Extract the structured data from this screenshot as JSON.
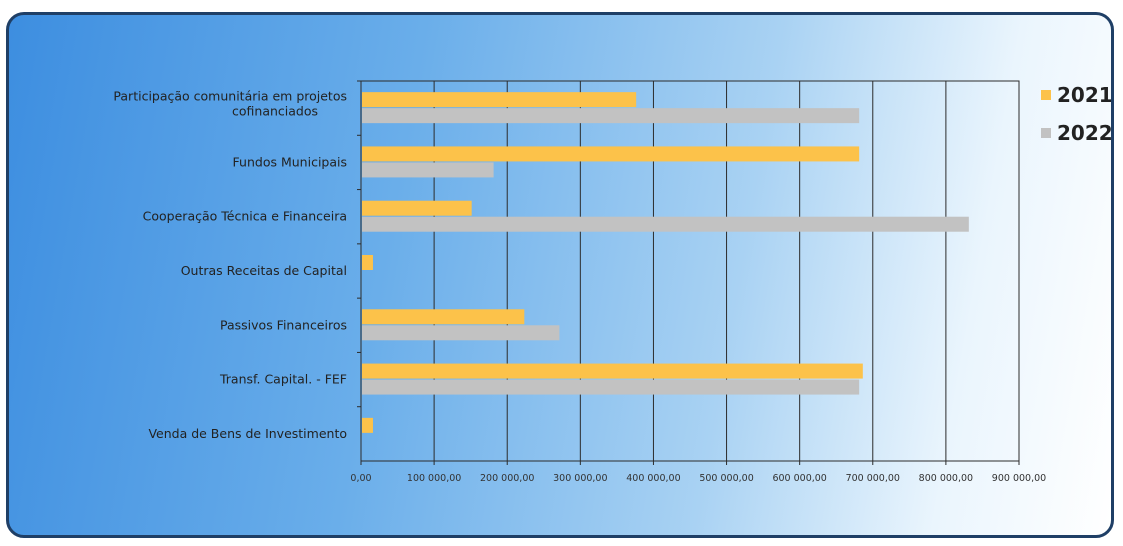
{
  "chart_data": {
    "type": "bar",
    "orientation": "horizontal",
    "categories": [
      "Participação comunitária em projetos cofinanciados",
      "Fundos Municipais",
      "Cooperação Técnica e Financeira",
      "Outras Receitas de Capital",
      "Passivos Financeiros",
      "Transf. Capital. - FEF",
      "Venda de Bens de Investimento"
    ],
    "category_lines": [
      [
        "Participação comunitária em projetos",
        "cofinanciados"
      ],
      [
        "Fundos Municipais"
      ],
      [
        "Cooperação Técnica e Financeira"
      ],
      [
        "Outras Receitas de Capital"
      ],
      [
        "Passivos Financeiros"
      ],
      [
        "Transf. Capital. - FEF"
      ],
      [
        "Venda de Bens de Investimento"
      ]
    ],
    "series": [
      {
        "name": "2021",
        "color": "#fcc24a",
        "values": [
          375000,
          680000,
          150000,
          15000,
          222000,
          685000,
          15000
        ]
      },
      {
        "name": "2022",
        "color": "#c2c2c2",
        "values": [
          680000,
          180000,
          830000,
          0,
          270000,
          680000,
          0
        ]
      }
    ],
    "xlim": [
      0,
      900000
    ],
    "x_ticks": [
      0,
      100000,
      200000,
      300000,
      400000,
      500000,
      600000,
      700000,
      800000,
      900000
    ],
    "x_tick_labels": [
      "0,00",
      "100 000,00",
      "200 000,00",
      "300 000,00",
      "400 000,00",
      "500 000,00",
      "600 000,00",
      "700 000,00",
      "800 000,00",
      "900 000,00"
    ],
    "grid": "vertical",
    "legend_position": "right",
    "title": "",
    "xlabel": "",
    "ylabel": ""
  }
}
